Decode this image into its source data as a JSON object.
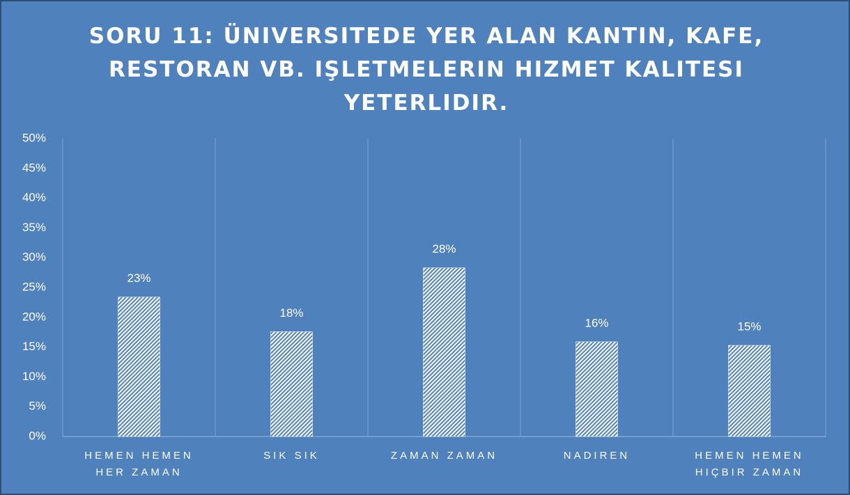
{
  "chart_data": {
    "type": "bar",
    "title": "SORU 11: ÜNIVERSITEDE YER ALAN KANTIN, KAFE, RESTORAN VB. IŞLETMELERIN HIZMET KALITESI YETERLIDIR.",
    "categories": [
      "HEMEN HEMEN HER ZAMAN",
      "SIK SIK",
      "ZAMAN ZAMAN",
      "NADIREN",
      "HEMEN HEMEN HIÇBIR ZAMAN"
    ],
    "values": [
      23.4,
      17.6,
      28.3,
      15.9,
      15.3
    ],
    "value_labels": [
      "23%",
      "18%",
      "28%",
      "16%",
      "15%"
    ],
    "color": "#ffffff",
    "ylim": [
      0,
      50
    ],
    "yticks": [
      {
        "value": 0,
        "label": "0%"
      },
      {
        "value": 5,
        "label": "5%"
      },
      {
        "value": 10,
        "label": "10%"
      },
      {
        "value": 15,
        "label": "15%"
      },
      {
        "value": 20,
        "label": "20%"
      },
      {
        "value": 25,
        "label": "25%"
      },
      {
        "value": 30,
        "label": "30%"
      },
      {
        "value": 35,
        "label": "35%"
      },
      {
        "value": 40,
        "label": "40%"
      },
      {
        "value": 45,
        "label": "45%"
      },
      {
        "value": 50,
        "label": "50%"
      }
    ],
    "grid": false
  }
}
